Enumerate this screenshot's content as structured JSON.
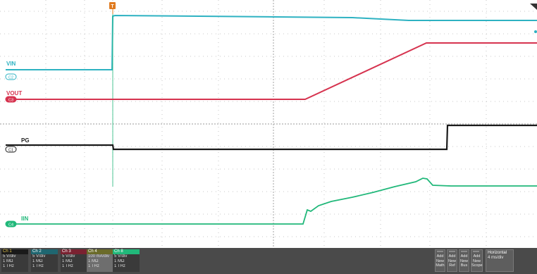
{
  "waveform_labels": {
    "vin": "VIN",
    "vout": "VOUT",
    "pg": "PG",
    "iin": "IIN"
  },
  "channel_markers": {
    "c1": "C1",
    "c2": "C2",
    "c3": "C3",
    "c4": "C4"
  },
  "trigger_marker": "T",
  "colors": {
    "vin": "#2eb2c2",
    "vout": "#d6334f",
    "pg": "#1a1a1a",
    "iin": "#21b87a",
    "grid": "#b9b9b9"
  },
  "channels": [
    {
      "title": "Ch 1",
      "line1": "5 V/div",
      "line2": "1 MΩ",
      "line3": "1 THz",
      "color": "#e8c84a",
      "title_bg": "#1a1a1a"
    },
    {
      "title": "Ch 2",
      "line1": "5 V/div",
      "line2": "1 MΩ",
      "line3": "1 THz",
      "color": "#2eb2c2",
      "title_bg": "#1f6670"
    },
    {
      "title": "Ch 3",
      "line1": "5 V/div",
      "line2": "1 MΩ",
      "line3": "1 THz",
      "color": "#d6334f",
      "title_bg": "#7a2231"
    },
    {
      "title": "Ch 4",
      "line1": "100 mA/div",
      "line2": "1 MΩ",
      "line3": "1 THz",
      "color": "#b2b24a",
      "title_bg": "#6b6b2a"
    },
    {
      "title": "Ch 8",
      "line1": "5 V/div",
      "line2": "1 MΩ",
      "line3": "1 THz",
      "color": "#21b87a",
      "title_bg": "#21b87a"
    }
  ],
  "add_buttons": [
    {
      "line1": "Add",
      "line2": "New",
      "line3": "Math"
    },
    {
      "line1": "Add",
      "line2": "New",
      "line3": "Ref"
    },
    {
      "line1": "Add",
      "line2": "New",
      "line3": "Bus"
    },
    {
      "line1": "Add",
      "line2": "New",
      "line3": "Scope"
    }
  ],
  "horizontal": {
    "title": "Horizontal",
    "scale": "4 ms/div"
  }
}
